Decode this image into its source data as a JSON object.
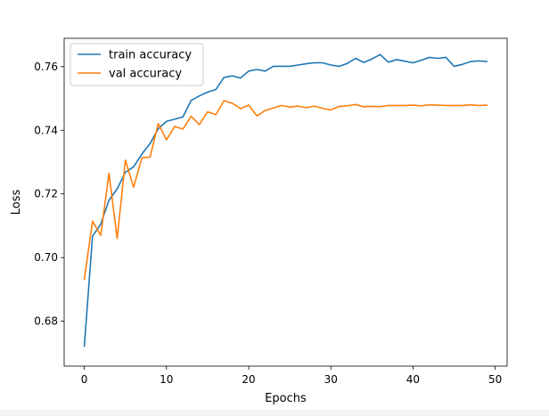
{
  "chart_data": {
    "type": "line",
    "title": "",
    "xlabel": "Epochs",
    "ylabel": "Loss",
    "xlim": [
      -2.45,
      51.45
    ],
    "ylim": [
      0.6659,
      0.7689
    ],
    "xticks": [
      0,
      10,
      20,
      30,
      40,
      50
    ],
    "yticks": [
      0.68,
      0.7,
      0.72,
      0.74,
      0.76
    ],
    "ytick_labels": [
      "0.68",
      "0.70",
      "0.72",
      "0.74",
      "0.76"
    ],
    "grid": false,
    "legend_position": "top-left",
    "x": [
      0,
      1,
      2,
      3,
      4,
      5,
      6,
      7,
      8,
      9,
      10,
      11,
      12,
      13,
      14,
      15,
      16,
      17,
      18,
      19,
      20,
      21,
      22,
      23,
      24,
      25,
      26,
      27,
      28,
      29,
      30,
      31,
      32,
      33,
      34,
      35,
      36,
      37,
      38,
      39,
      40,
      41,
      42,
      43,
      44,
      45,
      46,
      47,
      48,
      49
    ],
    "series": [
      {
        "name": "train accuracy",
        "color": "#1f77b4",
        "values": [
          0.6721,
          0.7067,
          0.7105,
          0.718,
          0.7216,
          0.7268,
          0.7285,
          0.7325,
          0.7358,
          0.7405,
          0.7428,
          0.7435,
          0.7442,
          0.7494,
          0.7508,
          0.752,
          0.7528,
          0.7566,
          0.7571,
          0.7564,
          0.7586,
          0.7591,
          0.7586,
          0.7601,
          0.7601,
          0.7601,
          0.7605,
          0.7609,
          0.7612,
          0.7612,
          0.7605,
          0.7601,
          0.761,
          0.7626,
          0.7613,
          0.7624,
          0.7638,
          0.7614,
          0.7622,
          0.7617,
          0.7612,
          0.762,
          0.7629,
          0.7626,
          0.7629,
          0.7601,
          0.7607,
          0.7616,
          0.7618,
          0.7616
        ]
      },
      {
        "name": "val accuracy",
        "color": "#ff7f0e",
        "values": [
          0.6932,
          0.7114,
          0.707,
          0.7265,
          0.706,
          0.7306,
          0.7221,
          0.7313,
          0.7316,
          0.7421,
          0.737,
          0.7412,
          0.7404,
          0.7444,
          0.7418,
          0.7458,
          0.7449,
          0.7493,
          0.7485,
          0.7468,
          0.7479,
          0.7445,
          0.7462,
          0.747,
          0.7478,
          0.7473,
          0.7476,
          0.7471,
          0.7476,
          0.7469,
          0.7464,
          0.7475,
          0.7477,
          0.7481,
          0.7474,
          0.7475,
          0.7474,
          0.7478,
          0.7478,
          0.7478,
          0.7479,
          0.7477,
          0.748,
          0.7479,
          0.7478,
          0.7478,
          0.7478,
          0.748,
          0.7478,
          0.7479
        ]
      }
    ]
  }
}
